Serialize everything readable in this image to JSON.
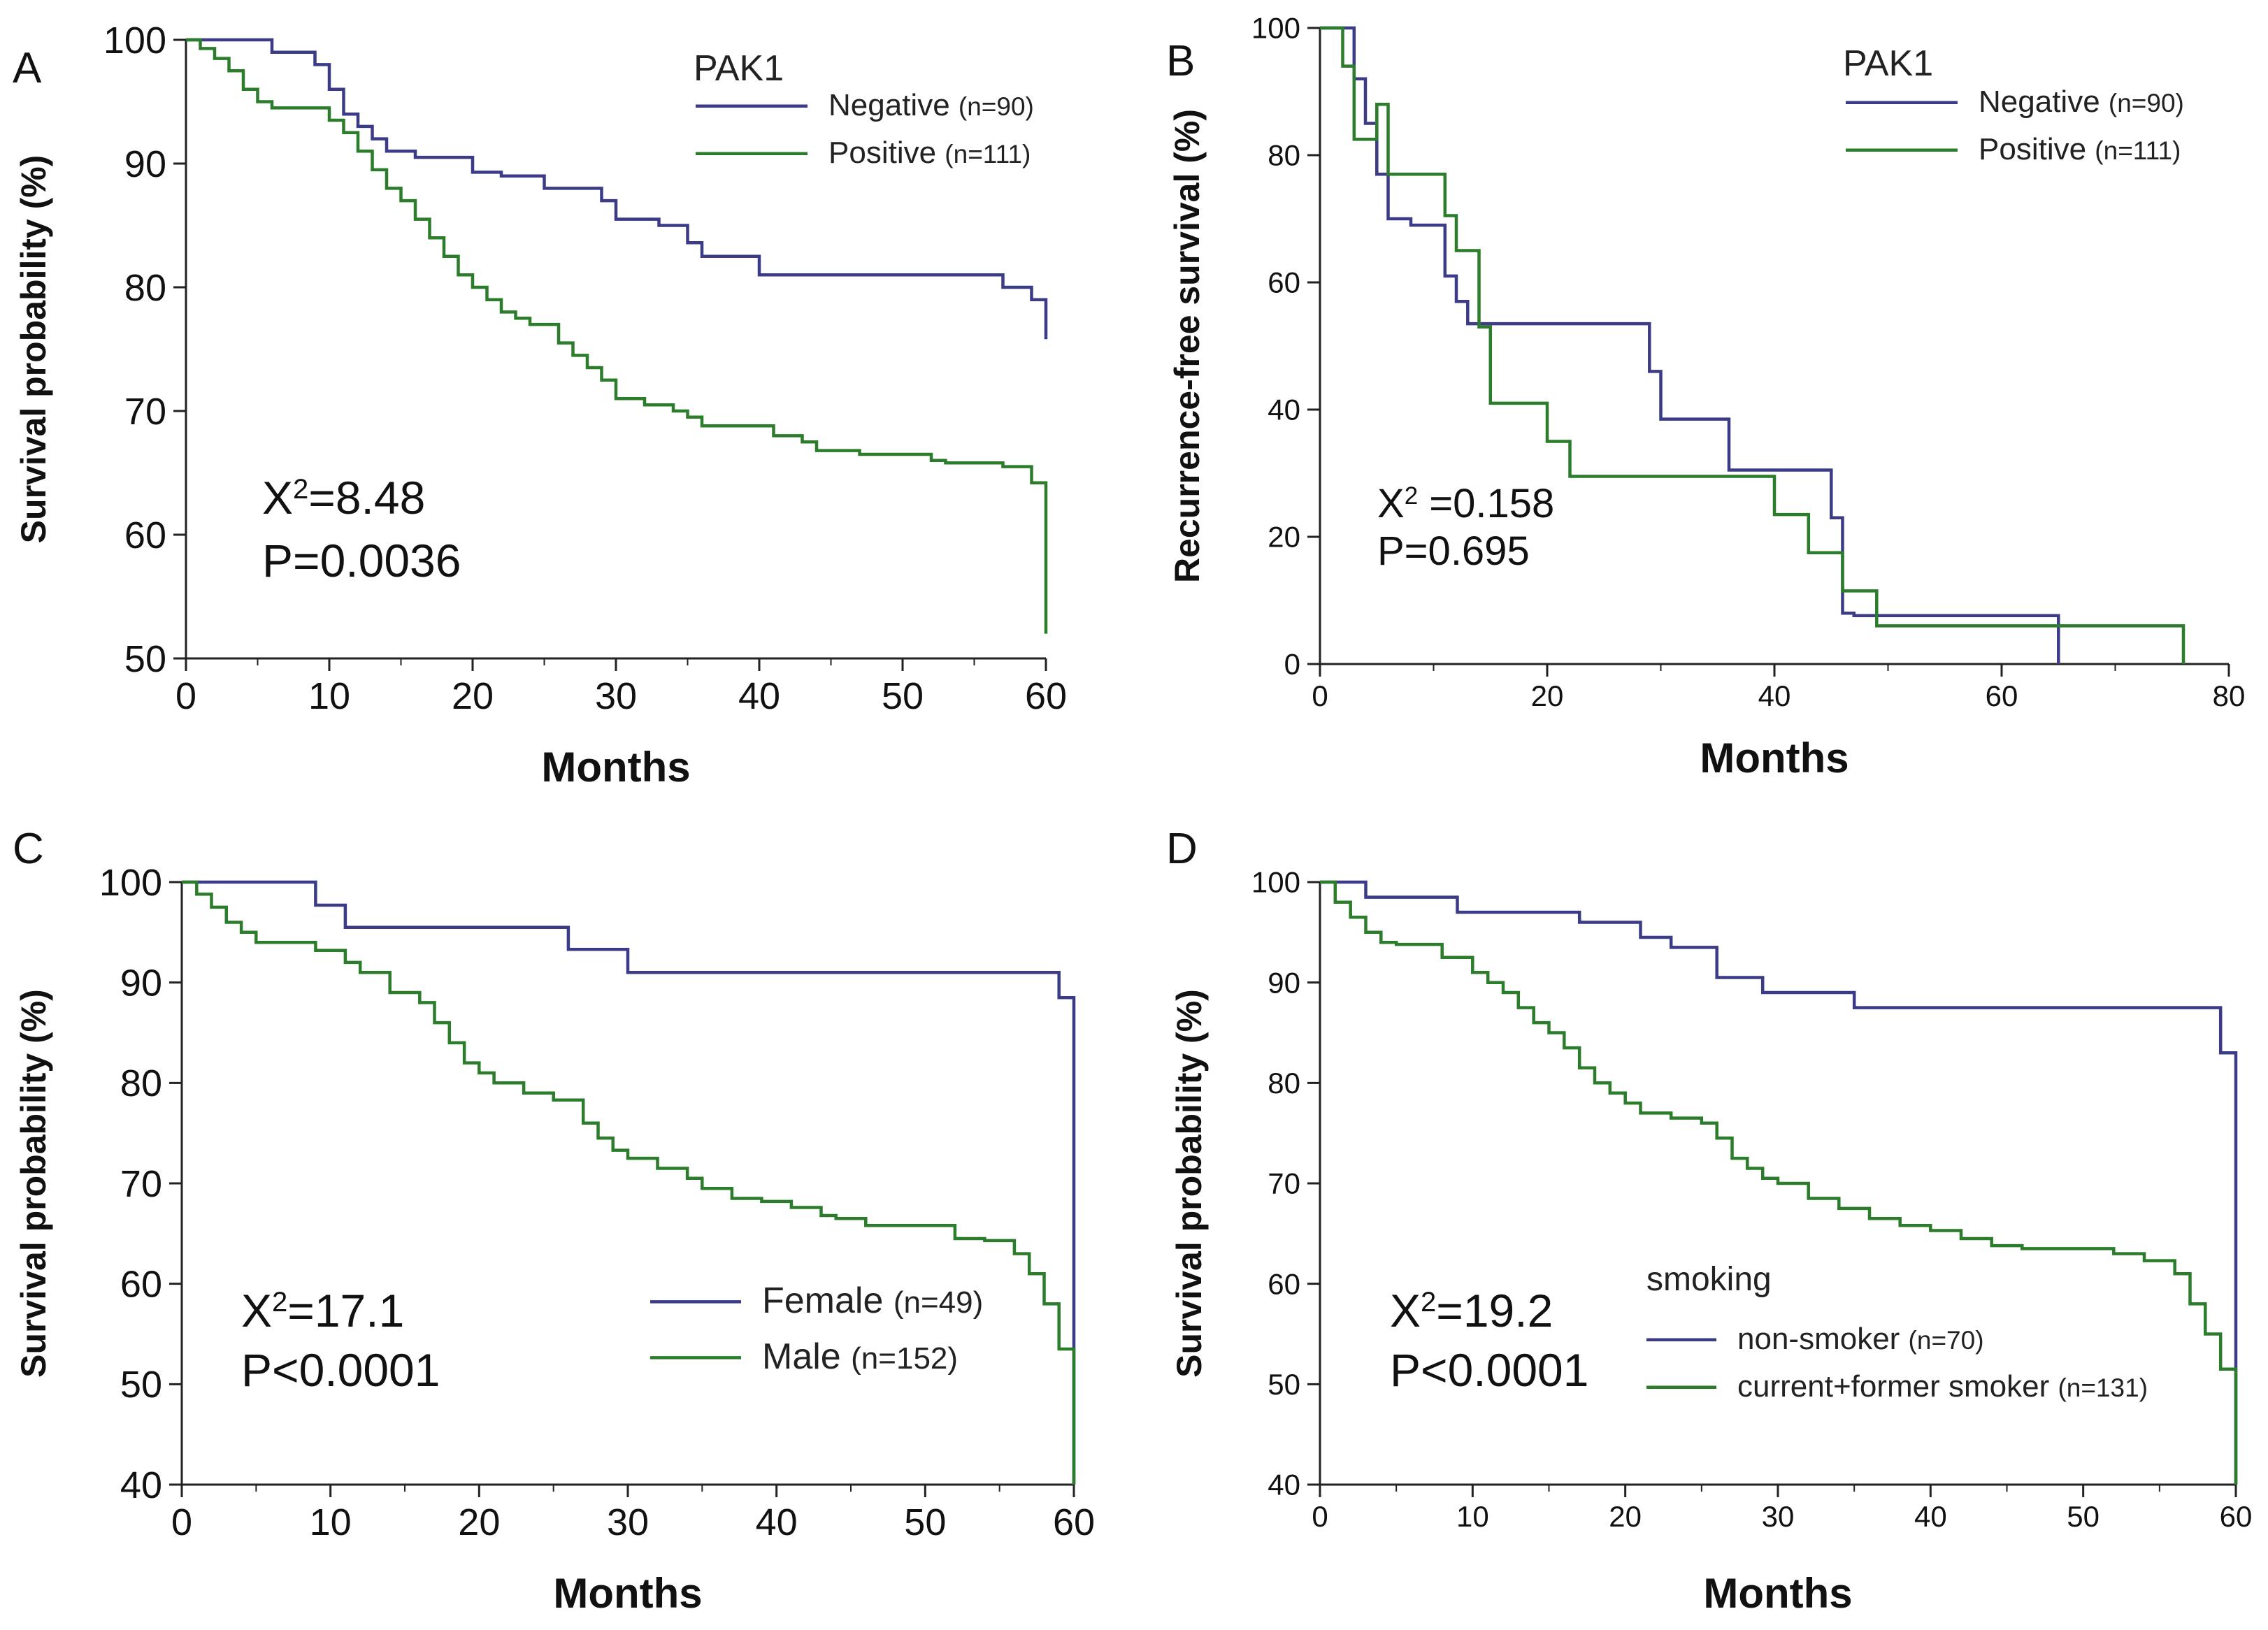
{
  "chart_data": [
    {
      "panel": "A",
      "type": "line",
      "step": true,
      "xlabel": "Months",
      "ylabel": "Survival probability (%)",
      "xlim": [
        0,
        60
      ],
      "ylim": [
        50,
        100
      ],
      "xticks": [
        0,
        10,
        20,
        30,
        40,
        50,
        60
      ],
      "yticks": [
        50,
        60,
        70,
        80,
        90,
        100
      ],
      "legend_title": "PAK1",
      "legend_position": "top-right",
      "stat": "X²=8.48",
      "stat_sup": "2",
      "stat_lines": [
        "=8.48",
        "P=0.0036"
      ],
      "stat_prefix": "X",
      "series": [
        {
          "name": "Negative",
          "n": "(n=90)",
          "color": "#3b3b88",
          "x": [
            0,
            6,
            9,
            10,
            11,
            12,
            13,
            14,
            16,
            20,
            22,
            25,
            29,
            30,
            33,
            35,
            36,
            40,
            45,
            57,
            59,
            60
          ],
          "y": [
            100,
            99,
            98,
            96,
            94,
            93,
            92,
            91,
            90.5,
            89.3,
            89,
            88,
            87,
            85.5,
            85,
            83.6,
            82.5,
            81,
            81,
            80,
            79,
            75.8
          ]
        },
        {
          "name": "Positive",
          "n": "(n=111)",
          "color": "#2b7d2b",
          "x": [
            0,
            1,
            2,
            3,
            4,
            5,
            6,
            8,
            10,
            11,
            12,
            13,
            14,
            15,
            16,
            17,
            18,
            19,
            20,
            21,
            22,
            23,
            24,
            26,
            27,
            28,
            29,
            30,
            31,
            32,
            34,
            35,
            36,
            38,
            40,
            41,
            43,
            44,
            47,
            49,
            52,
            53,
            55,
            57,
            59,
            60
          ],
          "y": [
            100,
            99.3,
            98.5,
            97.5,
            96,
            95,
            94.5,
            94.5,
            93.5,
            92.5,
            91,
            89.5,
            88,
            87,
            85.5,
            84,
            82.5,
            81,
            80,
            79,
            78,
            77.5,
            77,
            75.5,
            74.5,
            73.5,
            72.5,
            71,
            71,
            70.5,
            70,
            69.5,
            68.8,
            68.8,
            68.8,
            68,
            67.5,
            66.8,
            66.5,
            66.5,
            66,
            65.8,
            65.8,
            65.5,
            64.2,
            52
          ]
        }
      ]
    },
    {
      "panel": "B",
      "type": "line",
      "step": true,
      "xlabel": "Months",
      "ylabel": "Recurrence-free survival (%)",
      "xlim": [
        0,
        80
      ],
      "ylim": [
        0,
        100
      ],
      "xticks": [
        0,
        20,
        40,
        60,
        80
      ],
      "yticks": [
        0,
        20,
        40,
        60,
        80,
        100
      ],
      "legend_title": "PAK1",
      "legend_position": "top-right",
      "stat_prefix": "X",
      "stat_sup": "2",
      "stat_lines": [
        " =0.158",
        "P=0.695"
      ],
      "series": [
        {
          "name": "Negative",
          "n": "(n=90)",
          "color": "#3b3b88",
          "x": [
            0,
            3,
            4,
            5,
            6,
            7,
            8,
            11,
            12,
            13,
            14,
            28,
            29,
            30,
            36,
            42,
            45,
            46,
            47,
            64,
            65
          ],
          "y": [
            100,
            92,
            85,
            77,
            70,
            70,
            69,
            61,
            57,
            53.5,
            53.5,
            53.5,
            46,
            38.5,
            30.5,
            30.5,
            23,
            8,
            7.6,
            7.6,
            0
          ]
        },
        {
          "name": "Positive",
          "n": "(n=111)",
          "color": "#2b7d2b",
          "x": [
            0,
            2,
            3,
            5,
            6,
            8,
            11,
            12,
            14,
            15,
            20,
            22,
            40,
            43,
            46,
            49,
            76
          ],
          "y": [
            100,
            94,
            82.5,
            88,
            77,
            77,
            70.5,
            65,
            53,
            41,
            35,
            29.5,
            23.5,
            17.5,
            11.5,
            6,
            0
          ]
        }
      ]
    },
    {
      "panel": "C",
      "type": "line",
      "step": true,
      "xlabel": "Months",
      "ylabel": "Survival probability (%)",
      "xlim": [
        0,
        60
      ],
      "ylim": [
        40,
        100
      ],
      "xticks": [
        0,
        10,
        20,
        30,
        40,
        50,
        60
      ],
      "yticks": [
        40,
        50,
        60,
        70,
        80,
        90,
        100
      ],
      "legend_title": "",
      "legend_position": "bottom-right",
      "stat_prefix": "X",
      "stat_sup": "2",
      "stat_lines": [
        "=17.1",
        "P<0.0001"
      ],
      "series": [
        {
          "name": "Female",
          "n": "(n=49)",
          "color": "#3b3b88",
          "x": [
            0,
            9,
            11,
            26,
            30,
            57,
            59,
            60
          ],
          "y": [
            100,
            97.7,
            95.5,
            93.3,
            91,
            91,
            88.5,
            40
          ]
        },
        {
          "name": "Male",
          "n": "(n=152)",
          "color": "#2b7d2b",
          "x": [
            0,
            1,
            2,
            3,
            4,
            5,
            7,
            9,
            11,
            12,
            14,
            16,
            17,
            18,
            19,
            20,
            21,
            23,
            25,
            27,
            28,
            29,
            30,
            32,
            34,
            35,
            37,
            39,
            41,
            43,
            44,
            46,
            49,
            51,
            52,
            54,
            56,
            57,
            58,
            59,
            60
          ],
          "y": [
            100,
            98.8,
            97.5,
            96,
            95,
            94,
            94,
            93.2,
            92,
            91,
            89,
            88,
            86,
            84,
            82,
            81,
            80,
            79,
            78.3,
            76,
            74.5,
            73.3,
            72.5,
            71.5,
            70.5,
            69.5,
            68.5,
            68.2,
            67.6,
            66.8,
            66.5,
            65.8,
            65.8,
            65.8,
            64.5,
            64.3,
            63,
            61,
            58,
            53.5,
            40
          ]
        }
      ]
    },
    {
      "panel": "D",
      "type": "line",
      "step": true,
      "xlabel": "Months",
      "ylabel": "Survival probability (%)",
      "xlim": [
        0,
        60
      ],
      "ylim": [
        40,
        100
      ],
      "xticks": [
        0,
        10,
        20,
        30,
        40,
        50,
        60
      ],
      "yticks": [
        40,
        50,
        60,
        70,
        80,
        90,
        100
      ],
      "legend_title": "smoking",
      "legend_position": "bottom-right",
      "stat_prefix": "X",
      "stat_sup": "2",
      "stat_lines": [
        "=19.2",
        "P<0.0001"
      ],
      "series": [
        {
          "name": "non-smoker",
          "n": "(n=70)",
          "color": "#3b3b88",
          "x": [
            0,
            3,
            9,
            17,
            21,
            23,
            26,
            29,
            35,
            58,
            59,
            60
          ],
          "y": [
            100,
            98.5,
            97,
            96,
            94.5,
            93.5,
            90.5,
            89,
            87.5,
            87.5,
            83,
            40
          ]
        },
        {
          "name": "current+former smoker",
          "n": "(n=131)",
          "color": "#2b7d2b",
          "x": [
            0,
            1,
            2,
            3,
            4,
            5,
            8,
            10,
            11,
            12,
            13,
            14,
            15,
            16,
            17,
            18,
            19,
            20,
            21,
            23,
            25,
            26,
            27,
            28,
            29,
            30,
            32,
            34,
            36,
            38,
            40,
            42,
            44,
            46,
            50,
            52,
            54,
            56,
            57,
            58,
            59,
            60
          ],
          "y": [
            100,
            98,
            96.5,
            95,
            94,
            93.8,
            92.5,
            91,
            90,
            89,
            87.5,
            86,
            85,
            83.5,
            81.5,
            80,
            79,
            78,
            77,
            76.5,
            76,
            74.5,
            72.5,
            71.5,
            70.5,
            70,
            68.5,
            67.5,
            66.5,
            65.8,
            65.3,
            64.5,
            63.8,
            63.5,
            63.5,
            63,
            62.3,
            61,
            58,
            55,
            51.5,
            40
          ]
        }
      ]
    }
  ],
  "panels": [
    {
      "letter": "A"
    },
    {
      "letter": "B"
    },
    {
      "letter": "C"
    },
    {
      "letter": "D"
    }
  ]
}
